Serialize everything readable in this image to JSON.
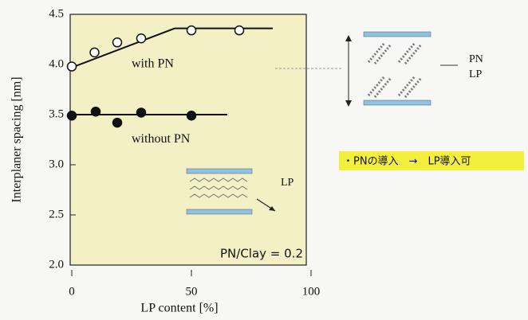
{
  "chart_data": {
    "type": "scatter",
    "x_label": "LP content [%]",
    "y_label": "Interplaner spacing [nm]",
    "xlim": [
      0,
      100
    ],
    "ylim": [
      2.0,
      4.5
    ],
    "xticks": [
      0,
      50,
      100
    ],
    "yticks": [
      {
        "value": 2.0,
        "label": "2.0"
      },
      2.5,
      {
        "value": 3.0,
        "label": "3.0"
      },
      3.5,
      {
        "value": 4.0,
        "label": "4.0"
      },
      4.5
    ],
    "series": [
      {
        "name": "with PN",
        "marker": "open",
        "color": "#111111",
        "x": [
          0,
          9.5,
          19,
          29,
          50,
          70
        ],
        "values": [
          3.98,
          4.12,
          4.22,
          4.26,
          4.34,
          4.34
        ],
        "fit_x": [
          0,
          43,
          84
        ],
        "fit_values": [
          3.97,
          4.36,
          4.36
        ]
      },
      {
        "name": "without PN",
        "marker": "filled",
        "color": "#111111",
        "x": [
          0,
          10,
          19,
          29,
          50
        ],
        "values": [
          3.49,
          3.53,
          3.42,
          3.52,
          3.49
        ],
        "fit_x": [
          2,
          65
        ],
        "fit_values": [
          3.5,
          3.5
        ]
      }
    ],
    "annotation": "PN/Clay = 0.2"
  },
  "diagrams": {
    "inset_label": "LP",
    "side_labels": [
      "PN",
      "LP"
    ],
    "note": "・PNの導入　→　LP導入可"
  }
}
